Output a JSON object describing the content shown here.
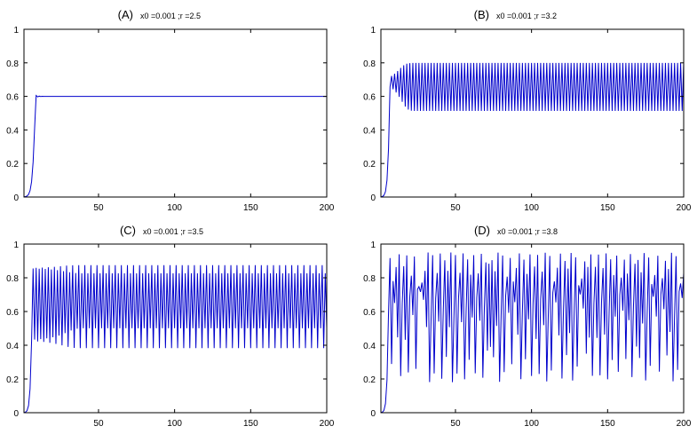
{
  "figure": {
    "line_color": "#0000cc",
    "axis_color": "#000000",
    "background": "#ffffff"
  },
  "chart_data": [
    {
      "id": "A",
      "type": "line",
      "label": "(A)",
      "subtitle": "x0 =0.001 ;r =2.5",
      "x0": 0.001,
      "r": 2.5,
      "n_points": 200,
      "xlim": [
        1,
        200
      ],
      "ylim": [
        0,
        1
      ],
      "xticks": [
        50,
        100,
        150,
        200
      ],
      "yticks": [
        0,
        0.2,
        0.4,
        0.6,
        0.8,
        1
      ],
      "ytick_labels": [
        "0",
        "0.2",
        "0.4",
        "0.6",
        "0.8",
        "1"
      ],
      "xlabel": "",
      "ylabel": "",
      "grid": false
    },
    {
      "id": "B",
      "type": "line",
      "label": "(B)",
      "subtitle": "x0 =0.001 ;r =3.2",
      "x0": 0.001,
      "r": 3.2,
      "n_points": 200,
      "xlim": [
        1,
        200
      ],
      "ylim": [
        0,
        1
      ],
      "xticks": [
        50,
        100,
        150,
        200
      ],
      "yticks": [
        0,
        0.2,
        0.4,
        0.6,
        0.8,
        1
      ],
      "ytick_labels": [
        "0",
        "0.2",
        "0.4",
        "0.6",
        "0.8",
        "1"
      ],
      "xlabel": "",
      "ylabel": "",
      "grid": false
    },
    {
      "id": "C",
      "type": "line",
      "label": "(C)",
      "subtitle": "x0 =0.001 ;r =3.5",
      "x0": 0.001,
      "r": 3.5,
      "n_points": 200,
      "xlim": [
        1,
        200
      ],
      "ylim": [
        0,
        1
      ],
      "xticks": [
        50,
        100,
        150,
        200
      ],
      "yticks": [
        0,
        0.2,
        0.4,
        0.6,
        0.8,
        1
      ],
      "ytick_labels": [
        "0",
        "0.2",
        "0.4",
        "0.6",
        "0.8",
        "1"
      ],
      "xlabel": "",
      "ylabel": "",
      "grid": false
    },
    {
      "id": "D",
      "type": "line",
      "label": "(D)",
      "subtitle": "x0 =0.001 ;r =3.8",
      "x0": 0.001,
      "r": 3.8,
      "n_points": 200,
      "xlim": [
        1,
        200
      ],
      "ylim": [
        0,
        1
      ],
      "xticks": [
        50,
        100,
        150,
        200
      ],
      "yticks": [
        0,
        0.2,
        0.4,
        0.6,
        0.8,
        1
      ],
      "ytick_labels": [
        "0",
        "0.2",
        "0.4",
        "0.6",
        "0.8",
        "1"
      ],
      "xlabel": "",
      "ylabel": "",
      "grid": false
    }
  ]
}
